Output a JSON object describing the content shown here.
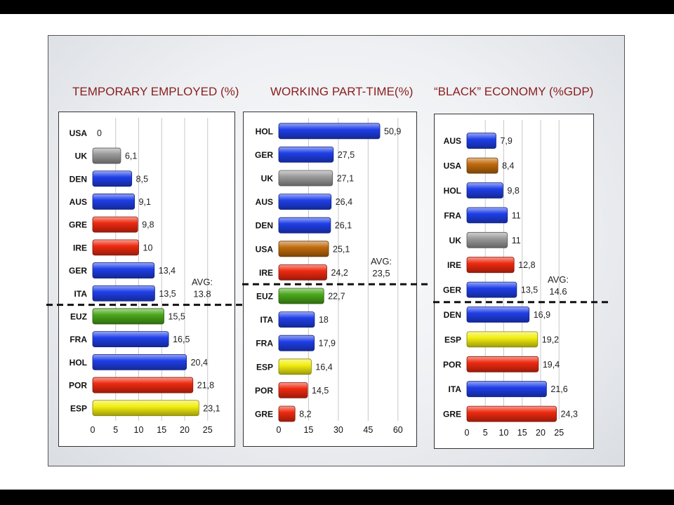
{
  "chart_data": [
    {
      "type": "bar",
      "orientation": "horizontal",
      "title": "TEMPORARY EMPLOYED (%)",
      "categories": [
        "USA",
        "UK",
        "DEN",
        "AUS",
        "GRE",
        "IRE",
        "GER",
        "ITA",
        "EUZ",
        "FRA",
        "HOL",
        "POR",
        "ESP"
      ],
      "values": [
        0,
        6.1,
        8.5,
        9.1,
        9.8,
        10,
        13.4,
        13.5,
        15.5,
        16.5,
        20.4,
        21.8,
        23.1
      ],
      "value_labels": [
        "0",
        "6,1",
        "8,5",
        "9,1",
        "9,8",
        "10",
        "13,4",
        "13,5",
        "15,5",
        "16,5",
        "20,4",
        "21,8",
        "23,1"
      ],
      "bar_colors": [
        "blue",
        "gray",
        "blue",
        "blue",
        "red",
        "red",
        "blue",
        "blue",
        "green",
        "blue",
        "blue",
        "red",
        "yellow"
      ],
      "ticks": [
        0,
        5,
        10,
        15,
        20,
        25
      ],
      "xlim": [
        0,
        30
      ],
      "grid": true,
      "avg_label": [
        "AVG:",
        "13.8"
      ],
      "avg_after_index": 7
    },
    {
      "type": "bar",
      "orientation": "horizontal",
      "title": "WORKING PART-TIME(%)",
      "categories": [
        "HOL",
        "GER",
        "UK",
        "AUS",
        "DEN",
        "USA",
        "IRE",
        "EUZ",
        "ITA",
        "FRA",
        "ESP",
        "POR",
        "GRE"
      ],
      "values": [
        50.9,
        27.5,
        27.1,
        26.4,
        26.1,
        25.1,
        24.2,
        22.7,
        18,
        17.9,
        16.4,
        14.5,
        8.2
      ],
      "value_labels": [
        "50,9",
        "27,5",
        "27,1",
        "26,4",
        "26,1",
        "25,1",
        "24,2",
        "22,7",
        "18",
        "17,9",
        "16,4",
        "14,5",
        "8,2"
      ],
      "bar_colors": [
        "blue",
        "blue",
        "gray",
        "blue",
        "blue",
        "orange",
        "red",
        "green",
        "blue",
        "blue",
        "yellow",
        "red",
        "red"
      ],
      "ticks": [
        0,
        15,
        30,
        45,
        60
      ],
      "xlim": [
        0,
        65
      ],
      "grid": true,
      "avg_label": [
        "AVG:",
        "23,5"
      ],
      "avg_after_index": 6
    },
    {
      "type": "bar",
      "orientation": "horizontal",
      "title": "“BLACK” ECONOMY (%GDP)",
      "categories": [
        "AUS",
        "USA",
        "HOL",
        "FRA",
        "UK",
        "IRE",
        "GER",
        "DEN",
        "ESP",
        "POR",
        "ITA",
        "GRE"
      ],
      "values": [
        7.9,
        8.4,
        9.8,
        11,
        11,
        12.8,
        13.5,
        16.9,
        19.2,
        19.4,
        21.6,
        24.3
      ],
      "value_labels": [
        "7,9",
        "8,4",
        "9,8",
        "11",
        "11",
        "12,8",
        "13,5",
        "16,9",
        "19,2",
        "19,4",
        "21,6",
        "24,3"
      ],
      "bar_colors": [
        "blue",
        "orange",
        "blue",
        "blue",
        "gray",
        "red",
        "blue",
        "blue",
        "yellow",
        "red",
        "blue",
        "red"
      ],
      "ticks": [
        0,
        5,
        10,
        15,
        20,
        25
      ],
      "xlim": [
        0,
        30
      ],
      "grid": true,
      "avg_label": [
        "AVG:",
        "14.6"
      ],
      "avg_after_index": 6
    }
  ],
  "colors": {
    "blue": "#1f3fe8",
    "gray": "#9a9a9a",
    "red": "#ee2a10",
    "green": "#4aa81a",
    "yellow": "#f2ee10",
    "orange": "#c06a0c",
    "title": "#8b1d1d"
  }
}
